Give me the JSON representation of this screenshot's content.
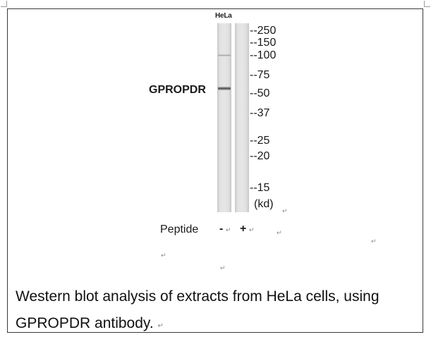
{
  "blot": {
    "lane_label": "HeLa",
    "protein_label": "GPROPDR",
    "markers": [
      "--250",
      "--150",
      "--100",
      "--75",
      "--50",
      "--37",
      "--25",
      "--20",
      "--15"
    ],
    "unit": "(kd)",
    "peptide_label": "Peptide",
    "peptide_signs": [
      "-",
      "+"
    ]
  },
  "caption": {
    "line1": "Western blot analysis of extracts from HeLa cells, using",
    "line2": "GPROPDR antibody."
  },
  "symbols": {
    "return_mark": "↵"
  }
}
